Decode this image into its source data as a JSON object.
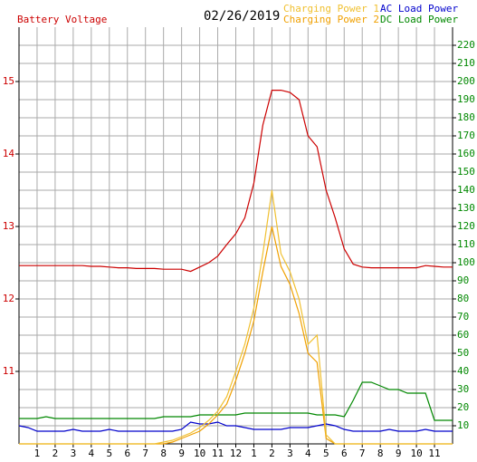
{
  "chart_data": {
    "type": "line",
    "title": "02/26/2019",
    "x": [
      0,
      0.5,
      1,
      1.5,
      2,
      2.5,
      3,
      3.5,
      4,
      4.5,
      5,
      5.5,
      6,
      6.5,
      7,
      7.5,
      8,
      8.5,
      9,
      9.5,
      10,
      10.5,
      11,
      11.5,
      12,
      12.5,
      13,
      13.5,
      14,
      14.5,
      15,
      15.5,
      16,
      16.5,
      17,
      17.5,
      18,
      18.5,
      19,
      19.5,
      20,
      20.5,
      21,
      21.5,
      22,
      22.5,
      23,
      23.5,
      24
    ],
    "xlim": [
      0,
      24
    ],
    "xticks": [
      1,
      2,
      3,
      4,
      5,
      6,
      7,
      8,
      9,
      10,
      11,
      12,
      {
        "value": 13,
        "label": "1"
      },
      {
        "value": 14,
        "label": "2"
      },
      {
        "value": 15,
        "label": "3"
      },
      {
        "value": 16,
        "label": "4"
      },
      {
        "value": 17,
        "label": "5"
      },
      {
        "value": 18,
        "label": "6"
      },
      {
        "value": 19,
        "label": "7"
      },
      {
        "value": 20,
        "label": "8"
      },
      {
        "value": 21,
        "label": "9"
      },
      {
        "value": 22,
        "label": "10"
      },
      {
        "value": 23,
        "label": "11"
      }
    ],
    "ylim": [
      10,
      15.75
    ],
    "yticks": [
      11,
      12,
      13,
      14,
      15
    ],
    "y2lim": [
      0,
      230
    ],
    "y2ticks": [
      10,
      20,
      30,
      40,
      50,
      60,
      70,
      80,
      90,
      100,
      110,
      120,
      130,
      140,
      150,
      160,
      170,
      180,
      190,
      200,
      210,
      220
    ],
    "grid": true,
    "series": [
      {
        "name": "Battery Voltage",
        "color": "#cc0000",
        "values": [
          12.46,
          12.46,
          12.46,
          12.46,
          12.46,
          12.46,
          12.46,
          12.46,
          12.45,
          12.45,
          12.44,
          12.43,
          12.43,
          12.42,
          12.42,
          12.42,
          12.41,
          12.41,
          12.41,
          12.38,
          12.44,
          12.5,
          12.59,
          12.75,
          12.9,
          13.12,
          13.6,
          14.4,
          14.88,
          14.88,
          14.85,
          14.75,
          14.25,
          14.1,
          13.5,
          13.12,
          12.69,
          12.48,
          12.44,
          12.43,
          12.43,
          12.43,
          12.43,
          12.43,
          12.43,
          12.46,
          12.45,
          12.44,
          12.44
        ]
      },
      {
        "name": "Charging Power 1",
        "color": "#f0c030",
        "axis": "y2",
        "values": [
          0,
          0,
          0,
          0,
          0,
          0,
          0,
          0,
          0,
          0,
          0,
          0,
          0,
          0,
          0,
          0,
          1,
          2,
          4,
          6,
          9,
          13,
          18,
          26,
          40,
          55,
          75,
          105,
          140,
          105,
          95,
          80,
          55,
          60,
          5,
          0,
          0,
          0,
          0,
          0,
          0,
          0,
          0,
          0,
          0,
          0,
          0,
          0,
          0
        ]
      },
      {
        "name": "Charging Power 2",
        "color": "#f0a000",
        "axis": "y2",
        "values": [
          0,
          0,
          0,
          0,
          0,
          0,
          0,
          0,
          0,
          0,
          0,
          0,
          0,
          0,
          0,
          0,
          0,
          1,
          3,
          5,
          7,
          11,
          16,
          22,
          35,
          50,
          68,
          95,
          120,
          98,
          88,
          72,
          50,
          45,
          3,
          0,
          0,
          0,
          0,
          0,
          0,
          0,
          0,
          0,
          0,
          0,
          0,
          0,
          0
        ]
      },
      {
        "name": "AC Load Power",
        "color": "#0000cc",
        "axis": "y2",
        "values": [
          10,
          9,
          7,
          7,
          7,
          7,
          8,
          7,
          7,
          7,
          8,
          7,
          7,
          7,
          7,
          7,
          7,
          7,
          8,
          12,
          11,
          11,
          12,
          10,
          10,
          9,
          8,
          8,
          8,
          8,
          9,
          9,
          9,
          10,
          11,
          10,
          8,
          7,
          7,
          7,
          7,
          8,
          7,
          7,
          7,
          8,
          7,
          7,
          7
        ]
      },
      {
        "name": "DC Load Power",
        "color": "#008800",
        "axis": "y2",
        "values": [
          14,
          14,
          14,
          15,
          14,
          14,
          14,
          14,
          14,
          14,
          14,
          14,
          14,
          14,
          14,
          14,
          15,
          15,
          15,
          15,
          16,
          16,
          16,
          16,
          16,
          17,
          17,
          17,
          17,
          17,
          17,
          17,
          17,
          16,
          16,
          16,
          15,
          24,
          34,
          34,
          32,
          30,
          30,
          28,
          28,
          28,
          13,
          13,
          13
        ]
      }
    ]
  }
}
